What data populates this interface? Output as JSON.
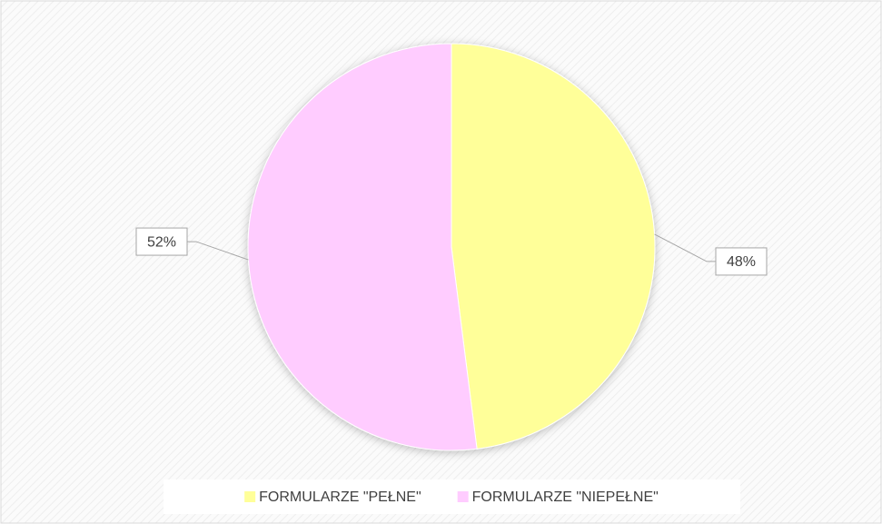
{
  "chart_data": {
    "type": "pie",
    "categories": [
      "FORMULARZE \"PEŁNE\"",
      "FORMULARZE \"NIEPEŁNE\""
    ],
    "values": [
      48,
      52
    ],
    "value_labels": [
      "48%",
      "52%"
    ],
    "colors": [
      "#ffff99",
      "#ffccff"
    ],
    "legend": "bottom"
  }
}
